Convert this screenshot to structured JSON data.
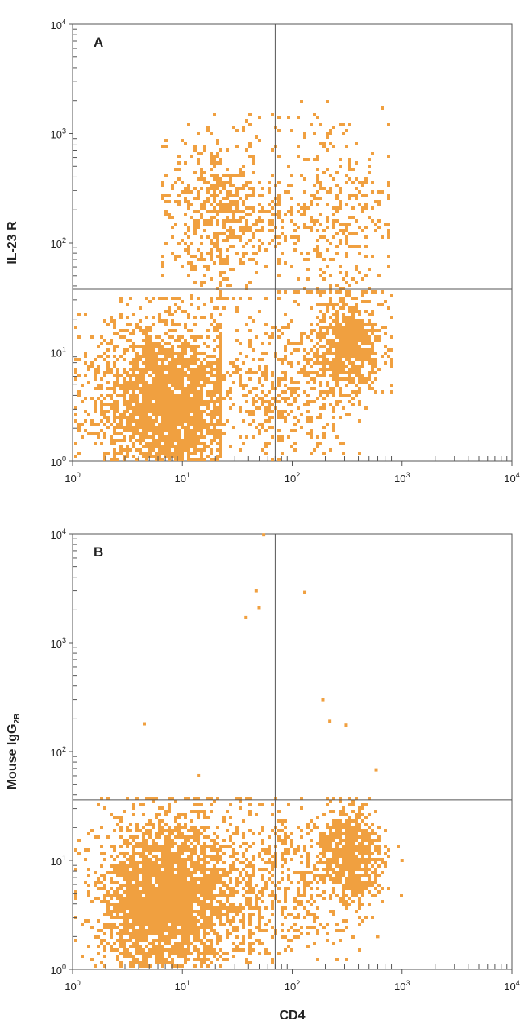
{
  "chart_data": [
    {
      "type": "scatter",
      "panel_label": "A",
      "xlabel": "",
      "ylabel": "IL-23 R",
      "ylabel_sub": "",
      "x_scale": "log",
      "y_scale": "log",
      "xlim": [
        1,
        10000
      ],
      "ylim": [
        1,
        10000
      ],
      "x_ticks": [
        1,
        10,
        100,
        1000,
        10000
      ],
      "y_ticks": [
        1,
        10,
        100,
        1000,
        10000
      ],
      "quadrant_gate": {
        "x": 70,
        "y": 38
      },
      "point_color": "#f0a040",
      "populations": [
        {
          "name": "",
          "count": 2600,
          "x_log_mean": 0.85,
          "x_log_sd": 0.32,
          "y_log_mean": 0.55,
          "y_log_sd": 0.38,
          "x_log_range": [
            0,
            1.35
          ],
          "y_log_range": [
            0,
            1.5
          ]
        },
        {
          "name": "",
          "count": 700,
          "x_log_mean": 2.5,
          "x_log_sd": 0.17,
          "y_log_mean": 1.1,
          "y_log_sd": 0.22,
          "x_log_range": [
            1.9,
            2.9
          ],
          "y_log_range": [
            0.5,
            1.55
          ]
        },
        {
          "name": "",
          "count": 600,
          "x_log_mean": 1.35,
          "x_log_sd": 0.28,
          "y_log_mean": 2.3,
          "y_log_sd": 0.35,
          "x_log_range": [
            0.8,
            2.2
          ],
          "y_log_range": [
            1.5,
            3.2
          ]
        },
        {
          "name": "",
          "count": 350,
          "x_log_mean": 2.35,
          "x_log_sd": 0.28,
          "y_log_mean": 2.3,
          "y_log_sd": 0.4,
          "x_log_range": [
            1.85,
            2.85
          ],
          "y_log_range": [
            1.55,
            3.3
          ]
        },
        {
          "name": "",
          "count": 500,
          "x_log_mean": 1.9,
          "x_log_sd": 0.35,
          "y_log_mean": 0.7,
          "y_log_sd": 0.35,
          "x_log_range": [
            1.3,
            2.6
          ],
          "y_log_range": [
            0,
            1.5
          ]
        }
      ]
    },
    {
      "type": "scatter",
      "panel_label": "B",
      "xlabel": "CD4",
      "ylabel": "Mouse IgG",
      "ylabel_sub": "2B",
      "x_scale": "log",
      "y_scale": "log",
      "xlim": [
        1,
        10000
      ],
      "ylim": [
        1,
        10000
      ],
      "x_ticks": [
        1,
        10,
        100,
        1000,
        10000
      ],
      "y_ticks": [
        1,
        10,
        100,
        1000,
        10000
      ],
      "quadrant_gate": {
        "x": 70,
        "y": 36
      },
      "point_color": "#f0a040",
      "populations": [
        {
          "name": "",
          "count": 3000,
          "x_log_mean": 0.85,
          "x_log_sd": 0.3,
          "y_log_mean": 0.65,
          "y_log_sd": 0.38,
          "x_log_range": [
            0,
            1.6
          ],
          "y_log_range": [
            0,
            1.6
          ]
        },
        {
          "name": "",
          "count": 700,
          "x_log_mean": 2.5,
          "x_log_sd": 0.15,
          "y_log_mean": 1.05,
          "y_log_sd": 0.22,
          "x_log_range": [
            1.9,
            3.0
          ],
          "y_log_range": [
            0.4,
            1.6
          ]
        },
        {
          "name": "",
          "count": 600,
          "x_log_mean": 1.8,
          "x_log_sd": 0.35,
          "y_log_mean": 0.8,
          "y_log_sd": 0.35,
          "x_log_range": [
            1.2,
            2.6
          ],
          "y_log_range": [
            0,
            1.6
          ]
        }
      ],
      "outliers": [
        [
          55,
          9800
        ],
        [
          47,
          3000
        ],
        [
          38,
          1700
        ],
        [
          130,
          2900
        ],
        [
          50,
          2100
        ],
        [
          190,
          300
        ],
        [
          220,
          190
        ],
        [
          310,
          175
        ],
        [
          4.5,
          180
        ],
        [
          580,
          68
        ],
        [
          14,
          60
        ],
        [
          1000,
          10
        ],
        [
          600,
          2
        ]
      ]
    }
  ]
}
